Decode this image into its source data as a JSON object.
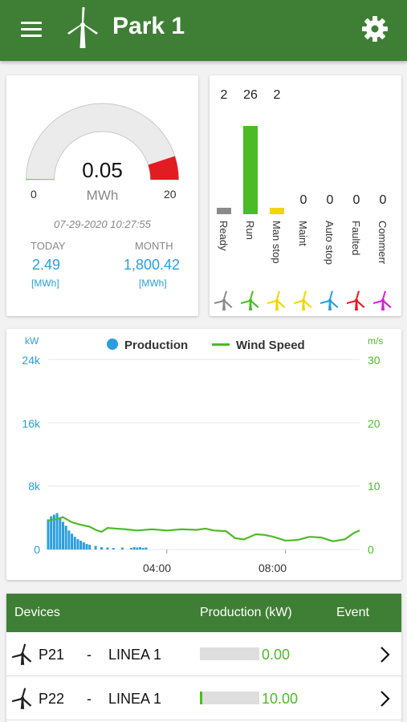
{
  "header": {
    "title": "Park 1",
    "menu_icon": "hamburger-menu-icon",
    "logo_icon": "wind-turbine-icon",
    "settings_icon": "gear-icon",
    "color": "#3f7f35"
  },
  "gauge": {
    "value": "0.05",
    "unit": "MWh",
    "min": "0",
    "max": "20",
    "fill_fraction": 0.0025,
    "red_zone_start_fraction": 0.9,
    "timestamp": "07-29-2020 10:27:55",
    "today": {
      "label": "TODAY",
      "value": "2.49",
      "unit": "[MWh]"
    },
    "month": {
      "label": "MONTH",
      "value": "1,800.42",
      "unit": "[MWh]"
    }
  },
  "status": {
    "items": [
      {
        "label": "Ready",
        "count": "2",
        "value": 2,
        "color": "#8a8a8a"
      },
      {
        "label": "Run",
        "count": "26",
        "value": 26,
        "color": "#4cbb26"
      },
      {
        "label": "Man stop",
        "count": "2",
        "value": 2,
        "color": "#f2d600"
      },
      {
        "label": "Maint",
        "count": "0",
        "value": 0,
        "color": "#f2d600"
      },
      {
        "label": "Auto stop",
        "count": "0",
        "value": 0,
        "color": "#2a9ee0"
      },
      {
        "label": "Faulted",
        "count": "0",
        "value": 0,
        "color": "#e31b23"
      },
      {
        "label": "Commerr",
        "count": "0",
        "value": 0,
        "color": "#d61fd6"
      }
    ]
  },
  "chart_data": {
    "type": "line",
    "legend": [
      "Production",
      "Wind Speed"
    ],
    "y_left_unit": "kW",
    "y_right_unit": "m/s",
    "y_left_ticks": [
      "24k",
      "16k",
      "8k",
      "0"
    ],
    "y_right_ticks": [
      "30",
      "20",
      "10",
      "0"
    ],
    "y_left_range": [
      0,
      24000
    ],
    "y_right_range": [
      0,
      30
    ],
    "x_ticks": [
      "04:00",
      "08:00"
    ],
    "x_tick_hours": [
      4,
      8
    ],
    "x_range_hours": [
      0.0,
      10.5
    ],
    "series": [
      {
        "name": "Wind Speed",
        "color": "#4cbb26",
        "x": [
          0.0,
          0.3,
          0.5,
          0.8,
          1.1,
          1.4,
          1.6,
          1.8,
          2.0,
          2.3,
          2.6,
          3.0,
          3.5,
          4.0,
          4.5,
          5.0,
          5.3,
          5.6,
          6.0,
          6.3,
          6.6,
          7.0,
          7.3,
          7.6,
          8.0,
          8.4,
          8.8,
          9.2,
          9.6,
          10.0,
          10.3,
          10.5
        ],
        "y": [
          4.6,
          4.8,
          5.1,
          4.3,
          3.9,
          3.6,
          3.1,
          2.8,
          3.4,
          3.3,
          3.2,
          3.0,
          3.2,
          3.0,
          3.2,
          3.1,
          3.3,
          3.0,
          2.9,
          1.8,
          1.6,
          2.4,
          2.3,
          2.0,
          1.4,
          1.5,
          2.0,
          1.9,
          1.3,
          1.6,
          2.6,
          3.0
        ]
      },
      {
        "name": "Production",
        "color": "#2a9ee0",
        "x": [
          0.0,
          0.1,
          0.2,
          0.3,
          0.4,
          0.5,
          0.6,
          0.7,
          0.8,
          0.9,
          1.0,
          1.1,
          1.2,
          1.3,
          1.4,
          1.6,
          1.8,
          2.0,
          2.2,
          2.5,
          2.8,
          2.9,
          3.0,
          3.1,
          3.2,
          3.3
        ],
        "y": [
          3800,
          4200,
          4400,
          4600,
          4000,
          3500,
          3000,
          2400,
          2000,
          1600,
          1300,
          1100,
          900,
          700,
          600,
          450,
          300,
          250,
          200,
          250,
          200,
          300,
          250,
          300,
          200,
          250
        ]
      }
    ]
  },
  "devices": {
    "headers": {
      "name": "Devices",
      "production": "Production (kW)",
      "event": "Event"
    },
    "max_kw": 2000,
    "rows": [
      {
        "name": "P21",
        "dash": "-",
        "line": "LINEA 1",
        "value": "0.00",
        "kw": 0.0
      },
      {
        "name": "P22",
        "dash": "-",
        "line": "LINEA 1",
        "value": "10.00",
        "kw": 10.0
      }
    ]
  }
}
